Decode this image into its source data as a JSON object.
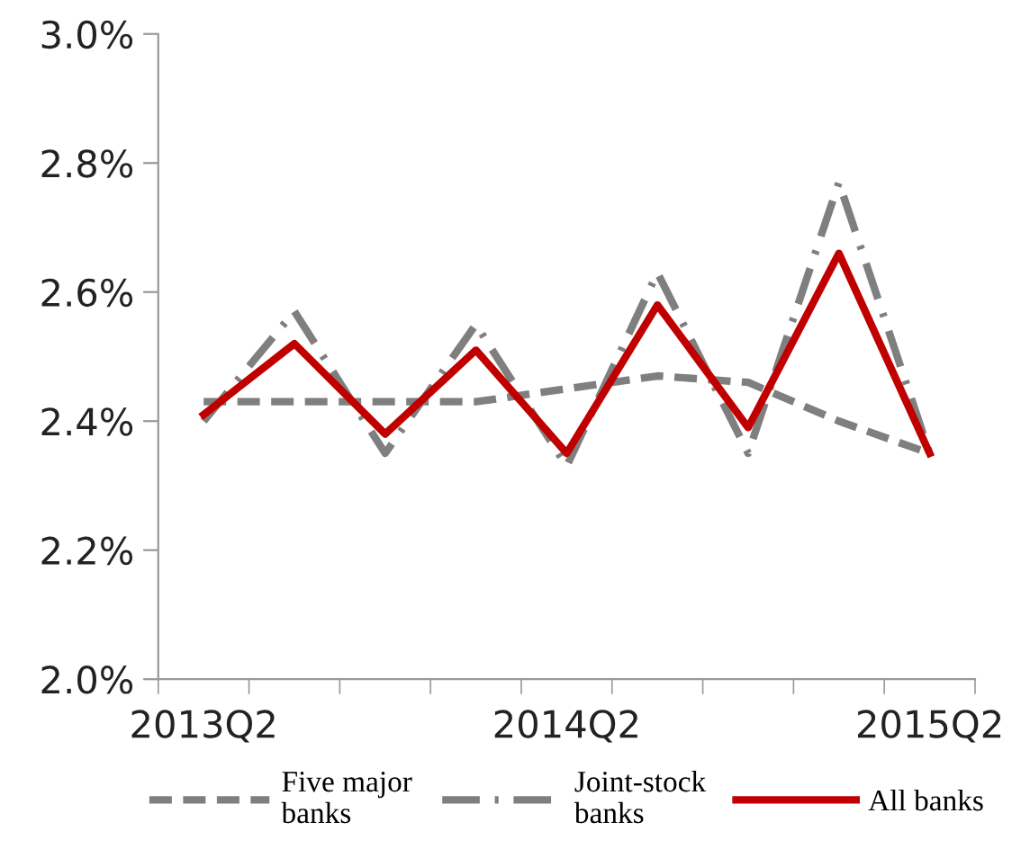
{
  "chart_data": {
    "type": "line",
    "categories": [
      "2013Q2",
      null,
      null,
      null,
      "2014Q2",
      null,
      null,
      null,
      "2015Q2"
    ],
    "series": [
      {
        "name": "Five major\nbanks",
        "color": "#7f7f7f",
        "line_style": "dashed",
        "values": [
          2.43,
          2.43,
          2.43,
          2.43,
          2.45,
          2.47,
          2.46,
          2.4,
          2.35
        ]
      },
      {
        "name": "Joint-stock\nbanks",
        "color": "#7f7f7f",
        "line_style": "dashdot",
        "values": [
          2.4,
          2.57,
          2.35,
          2.55,
          2.33,
          2.63,
          2.35,
          2.77,
          2.35
        ]
      },
      {
        "name": "All banks",
        "color": "#c00000",
        "line_style": "solid",
        "values": [
          2.41,
          2.52,
          2.38,
          2.51,
          2.35,
          2.58,
          2.39,
          2.66,
          2.35
        ]
      }
    ],
    "ylim": [
      2.0,
      3.0
    ],
    "yticks": [
      {
        "value": 2.0,
        "label": "2.0%"
      },
      {
        "value": 2.2,
        "label": "2.2%"
      },
      {
        "value": 2.4,
        "label": "2.4%"
      },
      {
        "value": 2.6,
        "label": "2.6%"
      },
      {
        "value": 2.8,
        "label": "2.8%"
      },
      {
        "value": 3.0,
        "label": "3.0%"
      }
    ],
    "grid": false,
    "legend": "bottom",
    "marker": "none"
  }
}
